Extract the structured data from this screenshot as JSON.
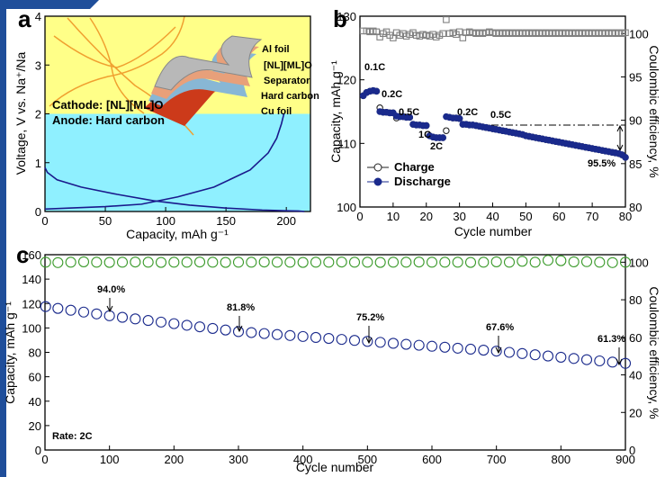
{
  "chart_data": [
    {
      "type": "line",
      "panel_label": "a",
      "x_label": "Capacity, mAh g⁻¹",
      "y_label": "Voltage, V vs. Na⁺/Na",
      "xlim": [
        0,
        220
      ],
      "xticks": [
        0,
        50,
        100,
        150,
        200
      ],
      "ylim": [
        0,
        4
      ],
      "yticks": [
        0,
        1,
        2,
        3,
        4
      ],
      "bands": [
        {
          "label": "Cathode: [NL][ML]O",
          "from": 2,
          "to": 4,
          "color": "#ffff88"
        },
        {
          "label": "Anode: Hard carbon",
          "from": 0,
          "to": 2,
          "color": "#8ff0ff"
        }
      ],
      "annotations": [
        "Al foil",
        "[NL][ML]O",
        "Separator",
        "Hard carbon",
        "Cu foil"
      ],
      "series": [
        {
          "color": "#1a1a8c",
          "marker": "none",
          "x": [
            0,
            2,
            10,
            30,
            60,
            90,
            120,
            150,
            180,
            200,
            210,
            215
          ],
          "values": [
            0.9,
            0.8,
            0.65,
            0.5,
            0.35,
            0.22,
            0.13,
            0.07,
            0.03,
            0.015,
            0.01,
            0
          ]
        },
        {
          "color": "#1a1a8c",
          "marker": "none",
          "x": [
            0,
            20,
            50,
            80,
            110,
            140,
            170,
            185,
            192,
            196,
            198
          ],
          "values": [
            0.05,
            0.07,
            0.1,
            0.15,
            0.3,
            0.5,
            0.85,
            1.2,
            1.5,
            1.8,
            2
          ]
        }
      ]
    },
    {
      "type": "scatter",
      "panel_label": "b",
      "x_label": "Cycle number",
      "y_label": "Capacity, mAh g⁻¹",
      "y2_label": "Coulombic efficiency, %",
      "xlim": [
        0,
        80
      ],
      "xticks": [
        0,
        10,
        20,
        30,
        40,
        50,
        60,
        70,
        80
      ],
      "ylim": [
        100,
        130
      ],
      "yticks": [
        100,
        110,
        120,
        130
      ],
      "y2lim": [
        80,
        102
      ],
      "y2ticks": [
        80,
        85,
        90,
        95,
        100
      ],
      "legend": "lower left",
      "annotations": [
        "0.1C",
        "0.2C",
        "0.5C",
        "1C",
        "2C",
        "0.2C",
        "0.5C",
        "95.5%"
      ],
      "x": [
        1,
        2,
        3,
        4,
        5,
        6,
        7,
        8,
        9,
        10,
        11,
        12,
        13,
        14,
        15,
        16,
        17,
        18,
        19,
        20,
        21,
        22,
        23,
        24,
        25,
        26,
        27,
        28,
        29,
        30,
        31,
        32,
        33,
        34,
        35,
        36,
        37,
        38,
        39,
        40,
        41,
        42,
        43,
        44,
        45,
        46,
        47,
        48,
        49,
        50,
        51,
        52,
        53,
        54,
        55,
        56,
        57,
        58,
        59,
        60,
        61,
        62,
        63,
        64,
        65,
        66,
        67,
        68,
        69,
        70,
        71,
        72,
        73,
        74,
        75,
        76,
        77,
        78,
        79,
        80
      ],
      "series": [
        {
          "color": "#808080",
          "marker": "square",
          "filled": false,
          "axis": "y2",
          "values": [
            100.3,
            100.3,
            100.2,
            100.3,
            100.2,
            99.6,
            100.0,
            100.2,
            99.8,
            99.5,
            100.1,
            99.8,
            100.0,
            99.7,
            99.9,
            100.1,
            99.8,
            99.7,
            99.9,
            99.8,
            99.7,
            99.9,
            99.6,
            99.8,
            100.0,
            101.6,
            100.0,
            100.1,
            99.9,
            100.2,
            99.5,
            100.1,
            100.2,
            100.1,
            100.0,
            100.1,
            100.0,
            100.1,
            100.2,
            100.1,
            100.0,
            100.1,
            100.0,
            100.1,
            100.0,
            100.1,
            100.0,
            100.1,
            100.0,
            100.1,
            100.0,
            100.1,
            100.0,
            100.1,
            100.0,
            100.1,
            100.0,
            100.1,
            100.0,
            100.1,
            100.0,
            100.1,
            100.0,
            100.1,
            100.0,
            100.1,
            100.0,
            100.1,
            100.0,
            100.1,
            100.0,
            100.1,
            100.0,
            100.1,
            100.0,
            100.1,
            100.0,
            100.1,
            100.0,
            100.1
          ]
        },
        {
          "name": "Charge",
          "color": "#222222",
          "marker": "circle",
          "filled": false,
          "values": [
            117.5,
            118,
            118.2,
            118.3,
            118.2,
            115.6,
            114.9,
            114.9,
            114.8,
            114.8,
            114.0,
            114.2,
            114.2,
            114.1,
            114.1,
            113,
            112.9,
            112.9,
            112.8,
            112.8,
            111.2,
            111,
            110.9,
            110.9,
            110.9,
            112.0,
            114.1,
            114,
            114,
            113.9,
            113,
            113,
            112.9,
            112.9,
            112.8,
            112.7,
            112.6,
            112.5,
            112.4,
            112.3,
            112.2,
            112.1,
            112,
            111.9,
            111.8,
            111.7,
            111.6,
            111.5,
            111.4,
            111.2,
            111.1,
            111,
            110.9,
            110.8,
            110.7,
            110.6,
            110.5,
            110.4,
            110.3,
            110.2,
            110.1,
            110,
            109.9,
            109.8,
            109.7,
            109.6,
            109.5,
            109.4,
            109.3,
            109.2,
            109.1,
            109,
            108.9,
            108.8,
            108.7,
            108.6,
            108.5,
            108.4,
            108.2,
            107.8
          ]
        },
        {
          "name": "Discharge",
          "color": "#1a2a8c",
          "marker": "circle",
          "filled": true,
          "values": [
            117.5,
            118,
            118.2,
            118.3,
            118.2,
            115,
            114.9,
            114.9,
            114.8,
            114.8,
            114.3,
            114.2,
            114.2,
            114.1,
            114.1,
            113,
            112.9,
            112.9,
            112.8,
            112.8,
            111.2,
            111,
            110.9,
            110.9,
            110.9,
            114.2,
            114.1,
            114,
            114,
            113.9,
            113,
            113,
            112.9,
            112.9,
            112.8,
            112.7,
            112.6,
            112.5,
            112.4,
            112.3,
            112.2,
            112.1,
            112,
            111.9,
            111.8,
            111.7,
            111.6,
            111.5,
            111.4,
            111.2,
            111.1,
            111,
            110.9,
            110.8,
            110.7,
            110.6,
            110.5,
            110.4,
            110.3,
            110.2,
            110.1,
            110,
            109.9,
            109.8,
            109.7,
            109.6,
            109.5,
            109.4,
            109.3,
            109.2,
            109.1,
            109,
            108.9,
            108.8,
            108.7,
            108.6,
            108.5,
            108.4,
            108.2,
            107.8
          ]
        }
      ]
    },
    {
      "type": "scatter",
      "panel_label": "c",
      "x_label": "Cycle number",
      "y_label": "Capacity, mAh g⁻¹",
      "y2_label": "Coulombic efficiency, %",
      "xlim": [
        0,
        900
      ],
      "xticks": [
        0,
        100,
        200,
        300,
        400,
        500,
        600,
        700,
        800,
        900
      ],
      "ylim": [
        0,
        160
      ],
      "yticks": [
        0,
        20,
        40,
        60,
        80,
        100,
        120,
        140,
        160
      ],
      "y2lim": [
        0,
        104
      ],
      "y2ticks": [
        0,
        20,
        40,
        60,
        80,
        100
      ],
      "annotations": [
        "94.0%",
        "81.8%",
        "75.2%",
        "67.6%",
        "61.3%",
        "Rate: 2C"
      ],
      "x": [
        1,
        20,
        40,
        60,
        80,
        100,
        120,
        140,
        160,
        180,
        200,
        220,
        240,
        260,
        280,
        300,
        320,
        340,
        360,
        380,
        400,
        420,
        440,
        460,
        480,
        500,
        520,
        540,
        560,
        580,
        600,
        620,
        640,
        660,
        680,
        700,
        720,
        740,
        760,
        780,
        800,
        820,
        840,
        860,
        880,
        900
      ],
      "series": [
        {
          "color": "#3a9a2a",
          "marker": "circle",
          "filled": false,
          "axis": "y2",
          "values": [
            100,
            99.8,
            100,
            100.2,
            100,
            99.9,
            100,
            100.1,
            100,
            99.9,
            100,
            100,
            100.1,
            100,
            99.9,
            100,
            100,
            100.1,
            100,
            100,
            99.9,
            100,
            100,
            100.1,
            100,
            100,
            99.9,
            100,
            100,
            100.1,
            100,
            100,
            100,
            99.9,
            100,
            100.2,
            100,
            100.5,
            100,
            101,
            100.8,
            100.2,
            100.3,
            100,
            99.8,
            100
          ]
        },
        {
          "color": "#1a2a8c",
          "marker": "circle",
          "filled": false,
          "values": [
            117.5,
            116,
            114.5,
            113,
            111.5,
            110,
            108.7,
            107.4,
            106.1,
            104.8,
            103.5,
            102.2,
            100.9,
            99.6,
            98.3,
            97,
            96.2,
            95.4,
            94.6,
            93.8,
            93,
            92.2,
            91.4,
            90.6,
            89.8,
            89,
            88.2,
            87.4,
            86.6,
            85.8,
            85,
            84.2,
            83.4,
            82.6,
            81.8,
            81,
            80,
            79,
            78,
            77,
            76,
            75,
            74,
            73,
            72,
            71
          ]
        }
      ]
    }
  ]
}
